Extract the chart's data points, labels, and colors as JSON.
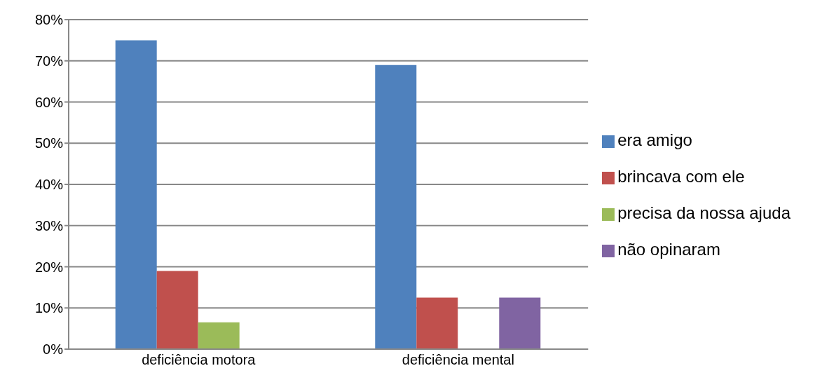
{
  "chart_data": {
    "type": "bar",
    "categories": [
      "deficiência motora",
      "deficiência mental"
    ],
    "series": [
      {
        "name": "era amigo",
        "color": "#4f81bd",
        "values": [
          75,
          69
        ]
      },
      {
        "name": "brincava com ele",
        "color": "#c0504d",
        "values": [
          19,
          12.5
        ]
      },
      {
        "name": "precisa da nossa ajuda",
        "color": "#9bbb59",
        "values": [
          6.5,
          0
        ]
      },
      {
        "name": "não opinaram",
        "color": "#8064a2",
        "values": [
          0,
          12.5
        ]
      }
    ],
    "ylim": [
      0,
      80
    ],
    "yticks": [
      {
        "value": 0,
        "label": "0%"
      },
      {
        "value": 10,
        "label": "10%"
      },
      {
        "value": 20,
        "label": "20%"
      },
      {
        "value": 30,
        "label": "30%"
      },
      {
        "value": 40,
        "label": "40%"
      },
      {
        "value": 50,
        "label": "50%"
      },
      {
        "value": 60,
        "label": "60%"
      },
      {
        "value": 70,
        "label": "70%"
      },
      {
        "value": 80,
        "label": "80%"
      }
    ],
    "grid": "y",
    "legend": "right"
  }
}
